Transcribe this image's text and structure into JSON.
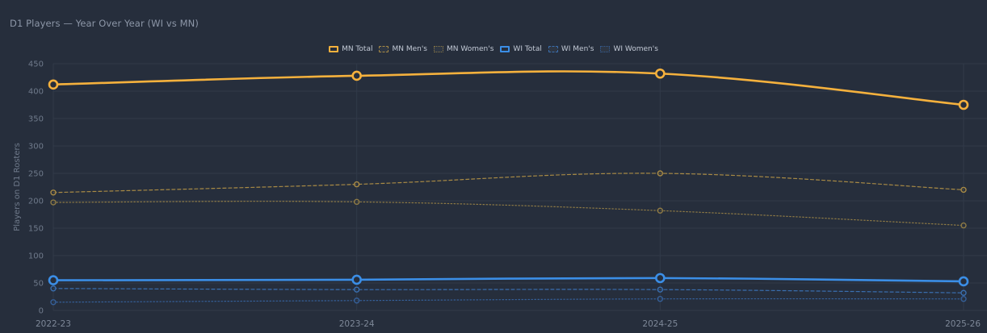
{
  "chart_data": {
    "type": "line",
    "title": "D1 Players — Year Over Year (WI vs MN)",
    "ylabel": "Players on D1 Rosters",
    "xlabel": "",
    "ylim": [
      0,
      450
    ],
    "yticks": [
      0,
      50,
      100,
      150,
      200,
      250,
      300,
      350,
      400,
      450
    ],
    "categories": [
      "2022-23",
      "2023-24",
      "2024-25",
      "2025-26"
    ],
    "legend_position": "top-center",
    "grid": true,
    "series": [
      {
        "name": "MN Total",
        "values": [
          412,
          428,
          432,
          375
        ],
        "color": "#f5b13d",
        "style": "solid"
      },
      {
        "name": "MN Men's",
        "values": [
          215,
          230,
          250,
          220
        ],
        "color": "#a88a45",
        "style": "dashed"
      },
      {
        "name": "MN Women's",
        "values": [
          197,
          198,
          182,
          155
        ],
        "color": "#8e7a45",
        "style": "dotted"
      },
      {
        "name": "WI Total",
        "values": [
          55,
          56,
          59,
          53
        ],
        "color": "#3b8ee6",
        "style": "solid"
      },
      {
        "name": "WI Men's",
        "values": [
          40,
          38,
          38,
          32
        ],
        "color": "#3a6fb0",
        "style": "dashed"
      },
      {
        "name": "WI Women's",
        "values": [
          15,
          18,
          21,
          21
        ],
        "color": "#355f98",
        "style": "dotted"
      }
    ]
  }
}
